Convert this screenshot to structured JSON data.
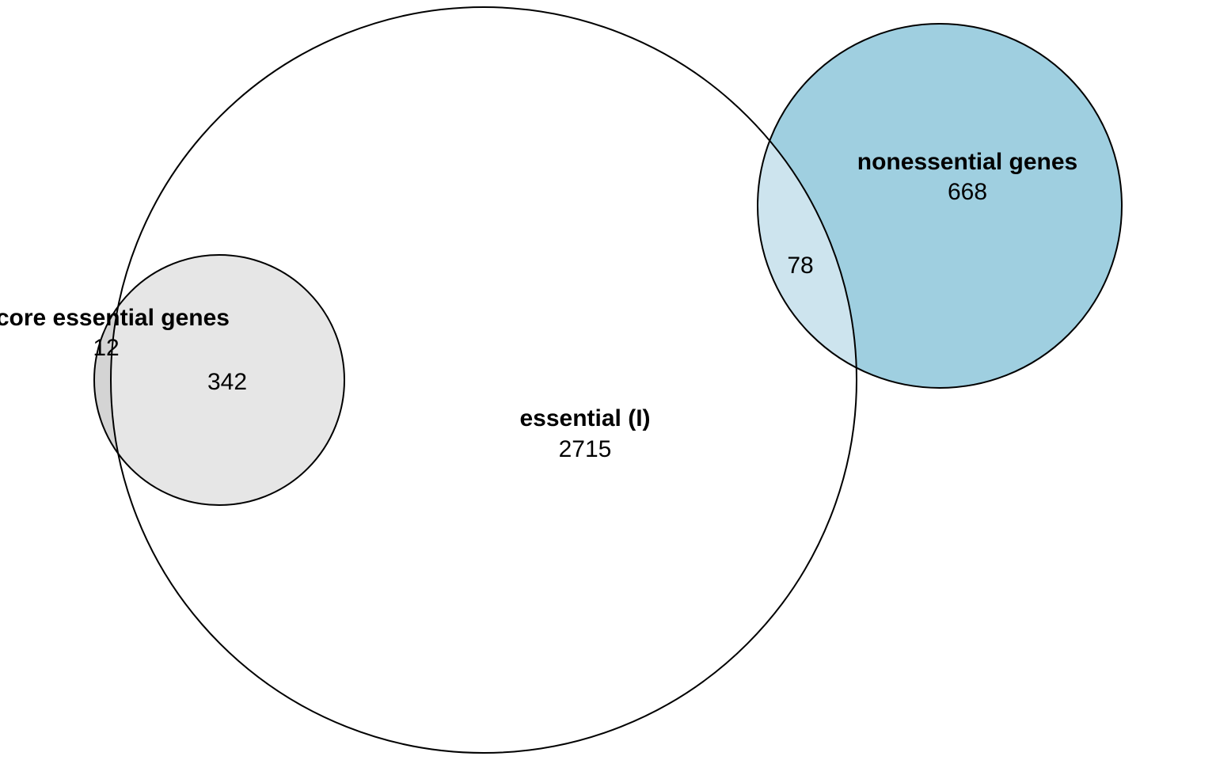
{
  "sets": [
    {
      "id": "essential",
      "label": "essential (I)",
      "fill": "#ffffff"
    },
    {
      "id": "core",
      "label": "core essential genes",
      "fill": "#e6e6e6"
    },
    {
      "id": "nonessential",
      "label": "nonessential genes",
      "fill": "#9fcfe0"
    }
  ],
  "regions": {
    "essential_only": "2715",
    "core_only": "12",
    "core_and_essential": "342",
    "nonessential_only": "668",
    "nonessential_and_essential": "78"
  },
  "colors": {
    "core_only_fill": "#d4d4d4",
    "core_and_essential_fill": "#e6e6e6",
    "nonessential_only_fill": "#9fcfe0",
    "nonessential_and_essential_fill": "#cde4ee",
    "stroke": "#000000"
  }
}
